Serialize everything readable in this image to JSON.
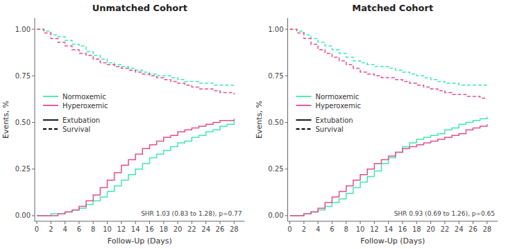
{
  "chart_data": [
    {
      "type": "step",
      "title": "Unmatched Cohort",
      "x_label": "Follow-Up (Days)",
      "y_label": "Events, %",
      "xlim": [
        -0.3,
        29.5
      ],
      "ylim": [
        -0.03,
        1.06
      ],
      "xticks": [
        0,
        2,
        4,
        6,
        8,
        10,
        12,
        14,
        16,
        18,
        20,
        22,
        24,
        26,
        28
      ],
      "yticks": [
        {
          "value": 0.0,
          "label": "0.00"
        },
        0.25,
        {
          "value": 0.5,
          "label": "0.50"
        },
        0.75,
        {
          "value": 1.0,
          "label": "1.00"
        }
      ],
      "grid": false,
      "legend": "left",
      "annotation": "SHR 1.03 (0.83 to 1.28), p=0.77",
      "legend_entries": [
        [
          {
            "label": "Normoxemic",
            "color": "#40e8b0",
            "line_style": "solid"
          },
          {
            "label": "Hyperoxemic",
            "color": "#e05090",
            "line_style": "solid"
          }
        ],
        [
          {
            "label": "Extubation",
            "color": "black",
            "line_style": "solid"
          },
          {
            "label": "Survival",
            "color": "black",
            "line_style": "dashed"
          }
        ]
      ],
      "series": [
        {
          "color": "#40e8b0",
          "line_style": "dashed",
          "x": [
            0,
            1,
            2,
            3,
            4,
            5,
            6,
            7,
            8,
            9,
            10,
            11,
            12,
            13,
            14,
            15,
            16,
            17,
            18,
            19,
            20,
            21,
            22,
            23,
            24,
            25,
            26,
            27,
            28
          ],
          "values": [
            1.0,
            0.99,
            0.97,
            0.96,
            0.94,
            0.92,
            0.91,
            0.88,
            0.86,
            0.84,
            0.82,
            0.81,
            0.8,
            0.79,
            0.78,
            0.77,
            0.76,
            0.75,
            0.75,
            0.74,
            0.73,
            0.72,
            0.72,
            0.71,
            0.71,
            0.7,
            0.7,
            0.7,
            0.7
          ]
        },
        {
          "color": "#e05090",
          "line_style": "dashed",
          "x": [
            0,
            1,
            2,
            3,
            4,
            5,
            6,
            7,
            8,
            9,
            10,
            11,
            12,
            13,
            14,
            15,
            16,
            17,
            18,
            19,
            20,
            21,
            22,
            23,
            24,
            25,
            26,
            27,
            28
          ],
          "values": [
            1.0,
            0.98,
            0.95,
            0.93,
            0.91,
            0.89,
            0.87,
            0.86,
            0.84,
            0.82,
            0.81,
            0.8,
            0.79,
            0.78,
            0.77,
            0.76,
            0.75,
            0.74,
            0.73,
            0.72,
            0.71,
            0.7,
            0.69,
            0.68,
            0.68,
            0.67,
            0.66,
            0.66,
            0.65
          ]
        },
        {
          "color": "#40e8b0",
          "line_style": "solid",
          "x": [
            0,
            1,
            2,
            3,
            4,
            5,
            6,
            7,
            8,
            9,
            10,
            11,
            12,
            13,
            14,
            15,
            16,
            17,
            18,
            19,
            20,
            21,
            22,
            23,
            24,
            25,
            26,
            27,
            28
          ],
          "values": [
            0.0,
            0.0,
            0.01,
            0.01,
            0.02,
            0.03,
            0.04,
            0.06,
            0.08,
            0.1,
            0.13,
            0.16,
            0.19,
            0.22,
            0.25,
            0.28,
            0.31,
            0.33,
            0.35,
            0.37,
            0.39,
            0.4,
            0.42,
            0.43,
            0.45,
            0.46,
            0.48,
            0.49,
            0.51
          ]
        },
        {
          "color": "#e05090",
          "line_style": "solid",
          "x": [
            0,
            1,
            2,
            3,
            4,
            5,
            6,
            7,
            8,
            9,
            10,
            11,
            12,
            13,
            14,
            15,
            16,
            17,
            18,
            19,
            20,
            21,
            22,
            23,
            24,
            25,
            26,
            27,
            28
          ],
          "values": [
            0.0,
            0.0,
            0.0,
            0.01,
            0.02,
            0.03,
            0.05,
            0.08,
            0.11,
            0.15,
            0.19,
            0.23,
            0.27,
            0.3,
            0.33,
            0.36,
            0.38,
            0.4,
            0.42,
            0.43,
            0.45,
            0.46,
            0.47,
            0.48,
            0.49,
            0.5,
            0.51,
            0.51,
            0.52
          ]
        }
      ]
    },
    {
      "type": "step",
      "title": "Matched Cohort",
      "x_label": "Follow-Up (Days)",
      "y_label": "Events, %",
      "xlim": [
        -0.3,
        29.5
      ],
      "ylim": [
        -0.03,
        1.06
      ],
      "xticks": [
        0,
        2,
        4,
        6,
        8,
        10,
        12,
        14,
        16,
        18,
        20,
        22,
        24,
        26,
        28
      ],
      "yticks": [
        {
          "value": 0.0,
          "label": "0.00"
        },
        0.25,
        {
          "value": 0.5,
          "label": "0.50"
        },
        0.75,
        {
          "value": 1.0,
          "label": "1.00"
        }
      ],
      "grid": false,
      "legend": "left",
      "annotation": "SHR 0.93 (0.69 to 1.26), p=0.65",
      "legend_entries": [
        [
          {
            "label": "Normoxemic",
            "color": "#40e8b0",
            "line_style": "solid"
          },
          {
            "label": "Hyperoxemic",
            "color": "#e05090",
            "line_style": "solid"
          }
        ],
        [
          {
            "label": "Extubation",
            "color": "black",
            "line_style": "solid"
          },
          {
            "label": "Survival",
            "color": "black",
            "line_style": "dashed"
          }
        ]
      ],
      "series": [
        {
          "color": "#40e8b0",
          "line_style": "dashed",
          "x": [
            0,
            1,
            2,
            3,
            4,
            5,
            6,
            7,
            8,
            9,
            10,
            11,
            12,
            13,
            14,
            15,
            16,
            17,
            18,
            19,
            20,
            21,
            22,
            23,
            24,
            25,
            26,
            27,
            28
          ],
          "values": [
            1.0,
            0.99,
            0.97,
            0.95,
            0.93,
            0.91,
            0.89,
            0.87,
            0.85,
            0.83,
            0.82,
            0.81,
            0.8,
            0.8,
            0.79,
            0.78,
            0.77,
            0.76,
            0.75,
            0.74,
            0.73,
            0.72,
            0.71,
            0.71,
            0.7,
            0.7,
            0.7,
            0.7,
            0.7
          ]
        },
        {
          "color": "#e05090",
          "line_style": "dashed",
          "x": [
            0,
            1,
            2,
            3,
            4,
            5,
            6,
            7,
            8,
            9,
            10,
            11,
            12,
            13,
            14,
            15,
            16,
            17,
            18,
            19,
            20,
            21,
            22,
            23,
            24,
            25,
            26,
            27,
            28
          ],
          "values": [
            1.0,
            0.98,
            0.95,
            0.92,
            0.89,
            0.87,
            0.85,
            0.83,
            0.81,
            0.79,
            0.77,
            0.76,
            0.75,
            0.74,
            0.74,
            0.73,
            0.72,
            0.71,
            0.7,
            0.69,
            0.68,
            0.67,
            0.66,
            0.65,
            0.65,
            0.64,
            0.64,
            0.63,
            0.63
          ]
        },
        {
          "color": "#40e8b0",
          "line_style": "solid",
          "x": [
            0,
            1,
            2,
            3,
            4,
            5,
            6,
            7,
            8,
            9,
            10,
            11,
            12,
            13,
            14,
            15,
            16,
            17,
            18,
            19,
            20,
            21,
            22,
            23,
            24,
            25,
            26,
            27,
            28
          ],
          "values": [
            0.0,
            0.0,
            0.01,
            0.02,
            0.03,
            0.05,
            0.07,
            0.09,
            0.12,
            0.15,
            0.18,
            0.21,
            0.24,
            0.28,
            0.31,
            0.34,
            0.37,
            0.39,
            0.41,
            0.42,
            0.43,
            0.44,
            0.46,
            0.47,
            0.49,
            0.5,
            0.51,
            0.52,
            0.53
          ]
        },
        {
          "color": "#e05090",
          "line_style": "solid",
          "x": [
            0,
            1,
            2,
            3,
            4,
            5,
            6,
            7,
            8,
            9,
            10,
            11,
            12,
            13,
            14,
            15,
            16,
            17,
            18,
            19,
            20,
            21,
            22,
            23,
            24,
            25,
            26,
            27,
            28
          ],
          "values": [
            0.0,
            0.0,
            0.01,
            0.02,
            0.04,
            0.07,
            0.1,
            0.13,
            0.16,
            0.19,
            0.22,
            0.25,
            0.28,
            0.3,
            0.32,
            0.34,
            0.36,
            0.37,
            0.38,
            0.39,
            0.4,
            0.41,
            0.42,
            0.43,
            0.44,
            0.46,
            0.47,
            0.48,
            0.49
          ]
        }
      ]
    }
  ]
}
